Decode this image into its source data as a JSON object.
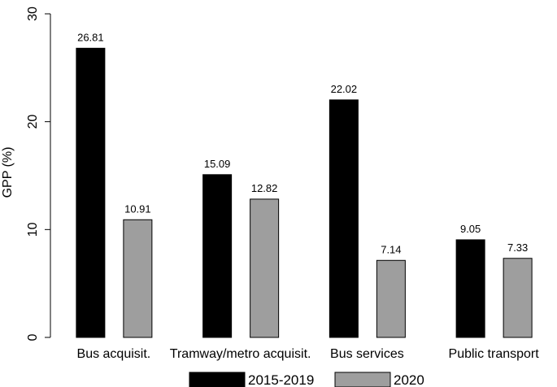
{
  "chart_data": {
    "type": "bar",
    "title": "",
    "xlabel": "",
    "ylabel": "GPP (%)",
    "ylim": [
      0,
      30
    ],
    "yticks": [
      0,
      10,
      20,
      30
    ],
    "grid": false,
    "legend_position": "bottom",
    "categories": [
      "Bus acquisit.",
      "Tramway/metro acquisit.",
      "Bus services",
      "Public transport"
    ],
    "series": [
      {
        "name": "2015-2019",
        "color": "#000000",
        "values": [
          26.81,
          15.09,
          22.02,
          9.05
        ]
      },
      {
        "name": "2020",
        "color": "#9e9e9e",
        "values": [
          10.91,
          12.82,
          7.14,
          7.33
        ]
      }
    ]
  }
}
